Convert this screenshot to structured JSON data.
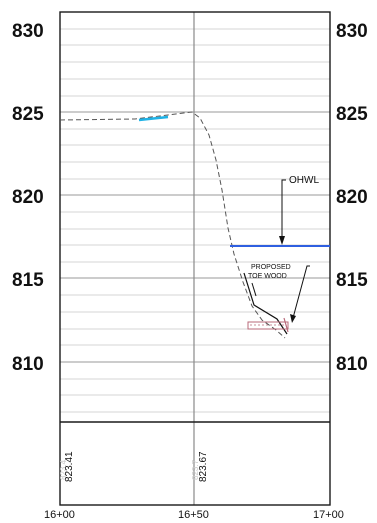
{
  "elevation_labels": [
    "830",
    "825",
    "820",
    "815",
    "810"
  ],
  "station_labels": [
    "16+00",
    "16+50",
    "17+00"
  ],
  "annotations": {
    "ohwl": "OHWL",
    "proposed_line1": "PROPOSED",
    "proposed_line2": "TOE WOOD"
  },
  "profile_values": {
    "left": "823.41",
    "right": "823.67",
    "left_ghost": "823.4",
    "right_ghost": "823.7"
  },
  "colors": {
    "grid_minor": "#d4d4d4",
    "grid_major": "#9a9a9a",
    "frame": "#1a1a1a",
    "water_line": "#2f5fe0",
    "existing_ground": "#555555",
    "proposed_segment": "#1fb2e6",
    "toe_wood": "#b86a7a"
  }
}
